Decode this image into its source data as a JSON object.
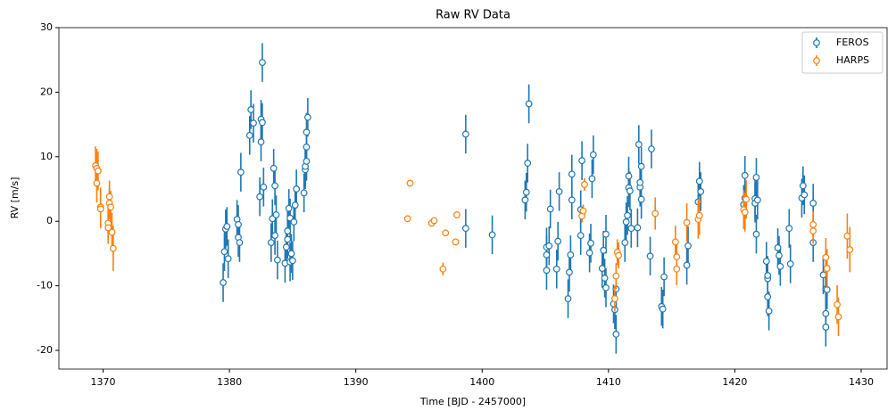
{
  "chart_data": {
    "type": "errorbar-scatter",
    "title": "Raw RV Data",
    "x_label": "Time [BJD - 2457000]",
    "y_label": "RV [m/s]",
    "xlim": [
      1366.5,
      1432.05
    ],
    "ylim": [
      -22.9,
      30
    ],
    "xticks": [
      1370,
      1380,
      1390,
      1400,
      1410,
      1420,
      1430
    ],
    "yticks": [
      -20,
      -10,
      0,
      10,
      20,
      30
    ],
    "legend": "upper right",
    "marker_fill": "#ffffff",
    "series": [
      {
        "name": "FEROS",
        "color": "#1f77b4",
        "x": [
          1379.5,
          1379.6,
          1379.7,
          1379.8,
          1379.9,
          1380.6,
          1380.7,
          1380.7,
          1380.8,
          1380.9,
          1381.6,
          1381.7,
          1381.9,
          1382.4,
          1382.5,
          1382.5,
          1382.6,
          1382.6,
          1382.7,
          1383.3,
          1383.4,
          1383.5,
          1383.6,
          1383.6,
          1383.7,
          1383.8,
          1384.4,
          1384.5,
          1384.6,
          1384.6,
          1384.7,
          1384.8,
          1384.8,
          1384.9,
          1385.0,
          1385.1,
          1385.2,
          1385.3,
          1385.9,
          1386.0,
          1386.0,
          1386.1,
          1386.1,
          1386.2,
          1386.1,
          1398.7,
          1398.7,
          1400.8,
          1403.4,
          1403.5,
          1403.6,
          1403.7,
          1405.1,
          1405.1,
          1405.1,
          1405.3,
          1405.4,
          1405.9,
          1406.0,
          1406.1,
          1406.8,
          1406.9,
          1407.0,
          1407.1,
          1407.1,
          1407.8,
          1407.8,
          1407.9,
          1408.5,
          1408.6,
          1408.7,
          1408.8,
          1409.5,
          1409.6,
          1409.7,
          1409.8,
          1409.8,
          1410.4,
          1410.5,
          1410.6,
          1410.6,
          1411.3,
          1411.4,
          1411.5,
          1411.6,
          1411.6,
          1411.7,
          1411.8,
          1412.3,
          1412.4,
          1412.5,
          1412.5,
          1412.6,
          1412.6,
          1413.3,
          1413.4,
          1414.2,
          1414.3,
          1414.4,
          1416.2,
          1416.3,
          1417.1,
          1417.2,
          1417.3,
          1420.8,
          1420.7,
          1420.8,
          1421.6,
          1421.7,
          1421.6,
          1421.7,
          1421.8,
          1422.5,
          1422.6,
          1422.6,
          1422.6,
          1422.7,
          1423.4,
          1423.5,
          1423.6,
          1424.3,
          1424.4,
          1425.3,
          1425.4,
          1425.5,
          1426.2,
          1426.2,
          1427.0,
          1427.2,
          1427.2,
          1427.2,
          1427.3
        ],
        "values": [
          -9.5,
          -4.7,
          -1.2,
          -0.8,
          -5.8,
          0.3,
          -0.5,
          -2.5,
          -3.3,
          7.6,
          13.3,
          17.3,
          15.2,
          3.8,
          15.8,
          12.3,
          15.3,
          24.6,
          5.3,
          -3.3,
          0.4,
          8.2,
          5.5,
          -2.2,
          1.0,
          -6.0,
          -6.5,
          -4.0,
          -1.5,
          -2.8,
          2.0,
          0.5,
          -6.3,
          -5.0,
          -6.1,
          -0.1,
          2.5,
          5.0,
          4.4,
          8.0,
          8.5,
          11.5,
          13.8,
          16.1,
          9.3,
          13.5,
          -1.1,
          -2.1,
          3.3,
          4.5,
          9.0,
          18.2,
          -4.0,
          -5.2,
          -7.6,
          -3.8,
          1.9,
          -7.4,
          -3.1,
          4.6,
          -12.0,
          -7.9,
          -5.2,
          3.3,
          7.3,
          1.8,
          -2.2,
          9.4,
          -4.9,
          -3.4,
          6.6,
          10.3,
          -7.3,
          -4.5,
          -8.8,
          -10.3,
          -2.0,
          -12.8,
          -13.7,
          -17.5,
          -10.5,
          -3.3,
          -0.1,
          0.9,
          5.2,
          7.0,
          4.7,
          -1.1,
          -1.0,
          11.9,
          5.3,
          6.0,
          8.5,
          3.4,
          -5.4,
          11.2,
          -13.2,
          -13.6,
          -8.6,
          -6.8,
          -3.8,
          3.0,
          6.2,
          4.6,
          7.1,
          2.6,
          3.6,
          3.5,
          6.8,
          2.8,
          -2.0,
          3.3,
          -6.2,
          -8.9,
          -8.4,
          -11.7,
          -13.9,
          -4.1,
          -5.3,
          -7.0,
          -1.1,
          -6.6,
          3.6,
          5.5,
          4.1,
          -3.3,
          2.8,
          -8.3,
          -10.5,
          -14.3,
          -16.4,
          -10.6
        ],
        "errors": [
          3,
          3,
          3,
          3,
          3,
          3,
          3,
          3,
          3,
          3,
          3,
          3,
          3,
          3,
          3,
          3,
          3,
          3,
          3,
          3,
          3,
          3,
          3,
          3,
          3,
          3,
          3,
          3,
          3,
          3,
          3,
          3,
          3,
          3,
          3,
          3,
          3,
          3,
          3,
          3,
          3,
          3,
          3,
          3,
          3,
          3,
          3,
          3,
          3,
          3,
          3,
          3,
          3,
          3,
          3,
          3,
          3,
          3,
          3,
          3,
          3,
          3,
          3,
          3,
          3,
          3,
          3,
          3,
          3,
          3,
          3,
          3,
          3,
          3,
          3,
          3,
          3,
          3,
          3,
          3,
          3,
          3,
          3,
          3,
          3,
          3,
          3,
          3,
          3,
          3,
          3,
          3,
          3,
          3,
          3,
          3,
          3,
          3,
          3,
          3,
          3,
          3,
          3,
          3,
          3,
          3,
          3,
          3,
          3,
          3,
          3,
          3,
          3,
          3,
          3,
          3,
          3,
          3,
          3,
          3,
          3,
          3,
          3,
          3,
          3,
          3,
          3,
          3,
          3,
          3,
          3,
          3
        ]
      },
      {
        "name": "HARPS",
        "color": "#ff7f0e",
        "x": [
          1369.4,
          1369.5,
          1369.6,
          1369.5,
          1369.8,
          1369.8,
          1370.4,
          1370.4,
          1370.5,
          1370.5,
          1370.6,
          1370.7,
          1370.8,
          1394.1,
          1394.3,
          1396.0,
          1396.2,
          1396.9,
          1397.1,
          1397.9,
          1398.0,
          1407.9,
          1408.0,
          1408.1,
          1410.5,
          1410.6,
          1410.7,
          1410.8,
          1413.7,
          1415.3,
          1415.4,
          1415.4,
          1416.2,
          1417.1,
          1417.2,
          1420.7,
          1420.8,
          1420.9,
          1426.2,
          1426.2,
          1427.2,
          1427.3,
          1428.1,
          1428.2,
          1428.9,
          1429.1
        ],
        "values": [
          8.6,
          8.2,
          7.8,
          5.9,
          2.2,
          1.9,
          -0.3,
          -1.0,
          3.8,
          2.8,
          2.2,
          -1.7,
          -4.2,
          0.4,
          5.9,
          -0.3,
          0.1,
          -7.4,
          -1.8,
          -3.2,
          1.0,
          0.8,
          1.6,
          5.7,
          -12.0,
          -8.5,
          -4.8,
          -5.3,
          1.2,
          -3.2,
          -5.5,
          -7.4,
          -0.2,
          0.3,
          0.9,
          1.8,
          1.4,
          3.4,
          -1.5,
          -0.5,
          -5.6,
          -7.3,
          -12.9,
          -14.8,
          -2.3,
          -4.4
        ],
        "errors": [
          3,
          3,
          3,
          3,
          3,
          3,
          2.5,
          2.5,
          2.5,
          2.5,
          2.5,
          3,
          3.5,
          0.5,
          0.5,
          0.5,
          0.5,
          1,
          0.5,
          0.5,
          0.5,
          1,
          1,
          1,
          2,
          2,
          2,
          2,
          2.5,
          2.5,
          2.5,
          2.5,
          3,
          3,
          3,
          3,
          3,
          3,
          2,
          2,
          3,
          3,
          3,
          3,
          3.5,
          3.5
        ]
      }
    ]
  }
}
